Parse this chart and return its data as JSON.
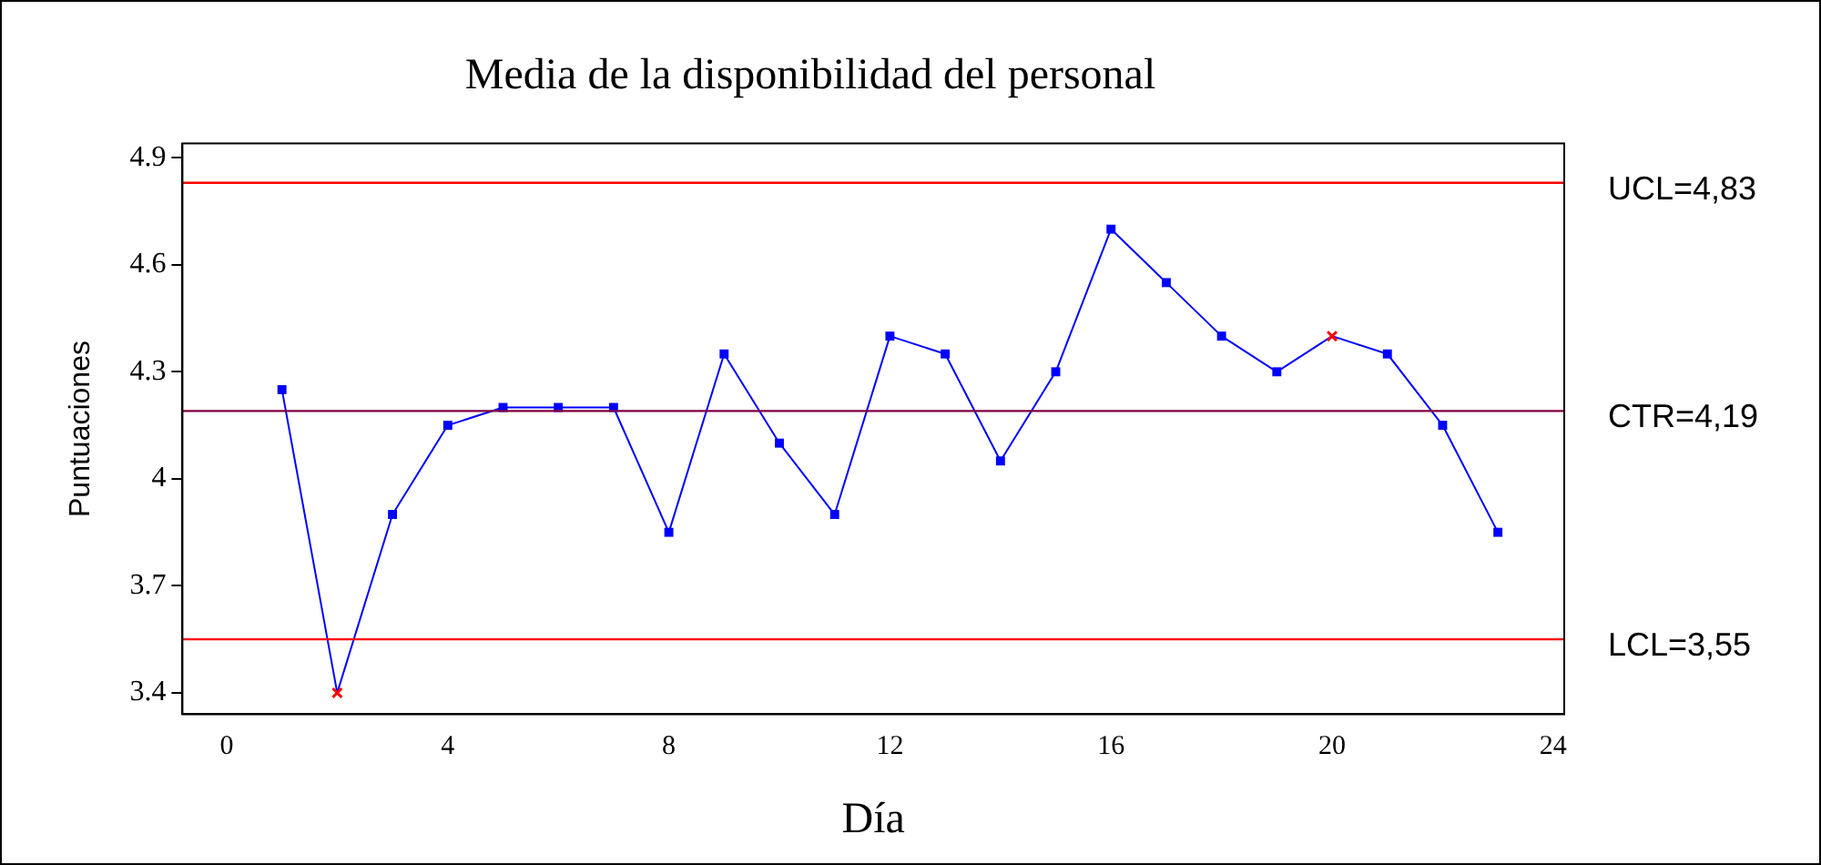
{
  "chart_data": {
    "type": "line",
    "title": "Media de la disponibilidad del personal",
    "xlabel": "Día",
    "ylabel": "Puntuaciones",
    "x": [
      1,
      2,
      3,
      4,
      5,
      6,
      7,
      8,
      9,
      10,
      11,
      12,
      13,
      14,
      15,
      16,
      17,
      18,
      19,
      20,
      21,
      22,
      23
    ],
    "series": [
      {
        "color": "#0000ff",
        "colors": [
          "#0000ff",
          "#ff0000",
          "#0000ff",
          "#0000ff",
          "#0000ff",
          "#0000ff",
          "#0000ff",
          "#0000ff",
          "#0000ff",
          "#0000ff",
          "#0000ff",
          "#0000ff",
          "#0000ff",
          "#0000ff",
          "#0000ff",
          "#0000ff",
          "#0000ff",
          "#0000ff",
          "#0000ff",
          "#ff0000",
          "#0000ff",
          "#0000ff",
          "#0000ff"
        ],
        "values": [
          4.25,
          3.4,
          3.9,
          4.15,
          4.2,
          4.2,
          4.2,
          3.85,
          4.35,
          4.1,
          3.9,
          4.4,
          4.35,
          4.05,
          4.3,
          4.7,
          4.55,
          4.4,
          4.3,
          4.4,
          4.35,
          4.15,
          3.85
        ]
      }
    ],
    "xlim": [
      -0.8,
      24.2
    ],
    "xticks": [
      0,
      4,
      8,
      12,
      16,
      20,
      24
    ],
    "ylim": [
      3.34,
      4.94
    ],
    "yticks": [
      3.4,
      3.7,
      4,
      4.3,
      4.6,
      4.9
    ],
    "ref_lines": [
      {
        "axis": "y",
        "value": 4.83,
        "label": "UCL=4,83",
        "color": "#ff0000"
      },
      {
        "axis": "y",
        "value": 4.19,
        "label": "CTR=4,19",
        "color": "#800040"
      },
      {
        "axis": "y",
        "value": 3.55,
        "label": "LCL=3,55",
        "color": "#ff0000"
      }
    ],
    "grid": false,
    "legend": false,
    "marker": "square",
    "line_style": "solid"
  }
}
